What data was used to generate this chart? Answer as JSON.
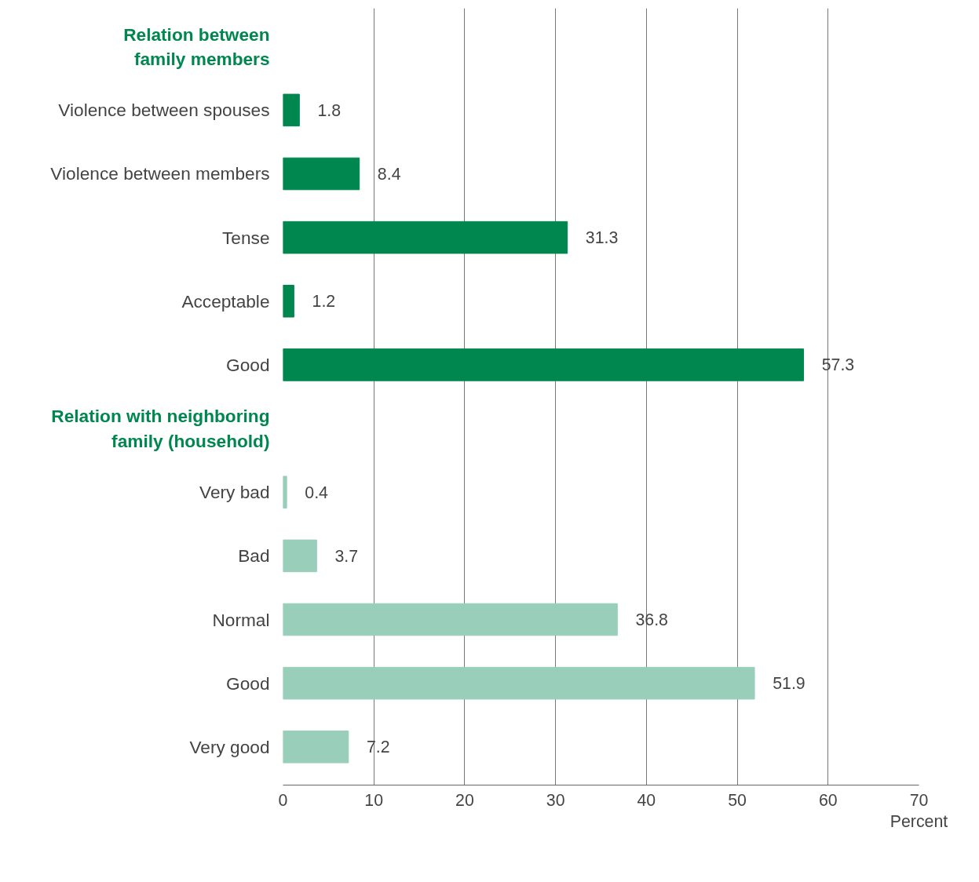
{
  "chart_data": {
    "type": "bar",
    "orientation": "horizontal",
    "categories": [
      "Relation between\nfamily members",
      "Violence between spouses",
      "Violence between members",
      "Tense",
      "Acceptable",
      "Good",
      "Relation with neighboring\nfamily (household)",
      "Very bad",
      "Bad",
      "Normal",
      "Good",
      "Very good"
    ],
    "series": [
      {
        "color": "#00874f",
        "values": [
          null,
          1.8,
          8.4,
          31.3,
          1.2,
          57.3,
          null,
          null,
          null,
          null,
          null,
          null
        ]
      },
      {
        "color": "#99cfba",
        "values": [
          null,
          null,
          null,
          null,
          null,
          null,
          null,
          0.4,
          3.7,
          36.8,
          51.9,
          7.2
        ]
      }
    ],
    "xlabel": "Percent",
    "xlim": [
      0,
      70
    ],
    "xticks": [
      0,
      10,
      20,
      30,
      40,
      50,
      60,
      70
    ],
    "grid": "x",
    "data_labels": true
  }
}
